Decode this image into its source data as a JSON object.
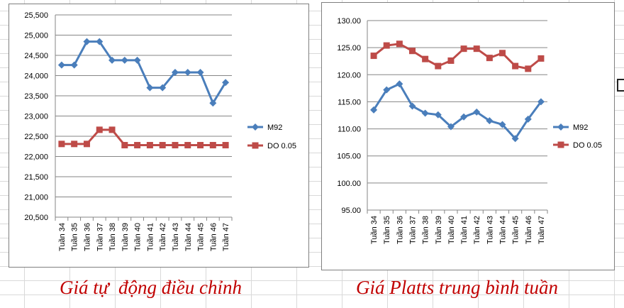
{
  "charts": [
    {
      "legend": {
        "m92": "M92",
        "do": "DO 0.05"
      },
      "caption": "Giá tự  động điều chỉnh"
    },
    {
      "legend": {
        "m92": "M92",
        "do": "DO 0.05"
      },
      "caption": "Giá Platts trung bình tuần"
    }
  ],
  "colors": {
    "m92": "#4a7ebb",
    "do": "#be4b48",
    "caption": "#c00000"
  },
  "chart_data": [
    {
      "type": "line",
      "categories": [
        "Tuần 34",
        "Tuần 35",
        "Tuần 36",
        "Tuần 37",
        "Tuần 38",
        "Tuần 39",
        "Tuần 40",
        "Tuần 41",
        "Tuần 42",
        "Tuần 43",
        "Tuần 44",
        "Tuần 45",
        "Tuần 46",
        "Tuần 47"
      ],
      "series": [
        {
          "name": "M92",
          "marker": "diamond",
          "values": [
            24260,
            24260,
            24840,
            24840,
            24380,
            24380,
            24380,
            23700,
            23700,
            24080,
            24080,
            24080,
            23320,
            23830
          ]
        },
        {
          "name": "DO 0.05",
          "marker": "square",
          "values": [
            22310,
            22310,
            22310,
            22660,
            22660,
            22280,
            22280,
            22280,
            22280,
            22280,
            22280,
            22280,
            22280,
            22280
          ]
        }
      ],
      "ylim": [
        20500,
        25500
      ],
      "yticks": [
        "20,500",
        "21,000",
        "21,500",
        "22,000",
        "22,500",
        "23,000",
        "23,500",
        "24,000",
        "24,500",
        "25,000",
        "25,500"
      ],
      "grid": "horizontal",
      "legend": "right",
      "title": "",
      "xlabel": "",
      "ylabel": ""
    },
    {
      "type": "line",
      "categories": [
        "Tuần 34",
        "Tuần 35",
        "Tuần 36",
        "Tuần 37",
        "Tuần 38",
        "Tuần 39",
        "Tuần 40",
        "Tuần 41",
        "Tuần 42",
        "Tuần 43",
        "Tuần 44",
        "Tuần 45",
        "Tuần 46",
        "Tuần 47"
      ],
      "series": [
        {
          "name": "M92",
          "marker": "diamond",
          "values": [
            113.5,
            117.2,
            118.3,
            114.2,
            112.9,
            112.6,
            110.4,
            112.2,
            113.1,
            111.5,
            110.8,
            108.2,
            111.8,
            115.0
          ]
        },
        {
          "name": "DO 0.05",
          "marker": "square",
          "values": [
            123.5,
            125.4,
            125.7,
            124.4,
            122.9,
            121.6,
            122.6,
            124.8,
            124.8,
            123.1,
            124.0,
            121.6,
            121.1,
            123.0
          ]
        }
      ],
      "ylim": [
        95,
        130
      ],
      "yticks": [
        "95.00",
        "100.00",
        "105.00",
        "110.00",
        "115.00",
        "120.00",
        "125.00",
        "130.00"
      ],
      "grid": "horizontal",
      "legend": "right",
      "title": "",
      "xlabel": "",
      "ylabel": ""
    }
  ]
}
